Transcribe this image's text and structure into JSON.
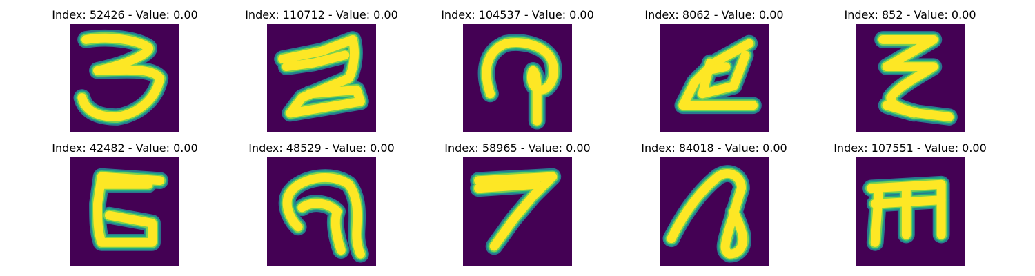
{
  "colors": {
    "background": "#440154",
    "stroke_core": "#fde725",
    "stroke_mid": "#7ad151",
    "stroke_edge": "#22a884",
    "stroke_fade": "#2a788e"
  },
  "panels": [
    {
      "title": "Index: 52426 - Value: 0.00"
    },
    {
      "title": "Index: 110712 - Value: 0.00"
    },
    {
      "title": "Index: 104537 - Value: 0.00"
    },
    {
      "title": "Index: 8062 - Value: 0.00"
    },
    {
      "title": "Index: 852 - Value: 0.00"
    },
    {
      "title": "Index: 42482 - Value: 0.00"
    },
    {
      "title": "Index: 48529 - Value: 0.00"
    },
    {
      "title": "Index: 58965 - Value: 0.00"
    },
    {
      "title": "Index: 84018 - Value: 0.00"
    },
    {
      "title": "Index: 107551 - Value: 0.00"
    }
  ]
}
